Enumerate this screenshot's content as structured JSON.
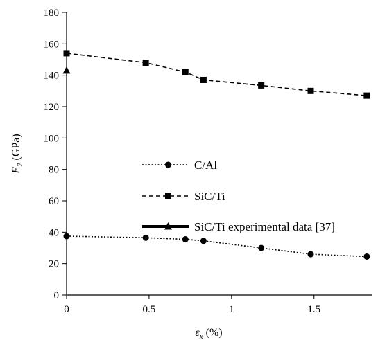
{
  "chart_data": {
    "type": "line",
    "xlabel": {
      "var": "ε",
      "sub": "x",
      "unit": " (%)"
    },
    "ylabel": {
      "var": "E",
      "sub": "2",
      "unit": " (GPa)"
    },
    "xlim": [
      0,
      1.85
    ],
    "ylim": [
      0,
      180
    ],
    "xticks": [
      0,
      0.5,
      1,
      1.5
    ],
    "xtick_labels": [
      "0",
      "0.5",
      "1",
      "1.5"
    ],
    "yticks": [
      0,
      20,
      40,
      60,
      80,
      100,
      120,
      140,
      160,
      180
    ],
    "ytick_labels": [
      "0",
      "20",
      "40",
      "60",
      "80",
      "100",
      "120",
      "140",
      "160",
      "180"
    ],
    "grid": false,
    "legend_position": "center",
    "series": [
      {
        "name": "C/Al",
        "style": "dotted",
        "marker": "circle",
        "x": [
          0,
          0.48,
          0.72,
          0.83,
          1.18,
          1.48,
          1.82
        ],
        "y": [
          37.5,
          36.5,
          35.5,
          34.5,
          30,
          26,
          24.5
        ]
      },
      {
        "name": "SiC/Ti",
        "style": "dashed",
        "marker": "square",
        "x": [
          0,
          0.48,
          0.72,
          0.83,
          1.18,
          1.48,
          1.82
        ],
        "y": [
          154,
          148,
          142,
          137,
          133.5,
          130,
          127
        ]
      },
      {
        "name": "SiC/Ti experimental data [37]",
        "style": "solid",
        "marker": "triangle",
        "x": [
          0
        ],
        "y": [
          143
        ]
      }
    ]
  }
}
